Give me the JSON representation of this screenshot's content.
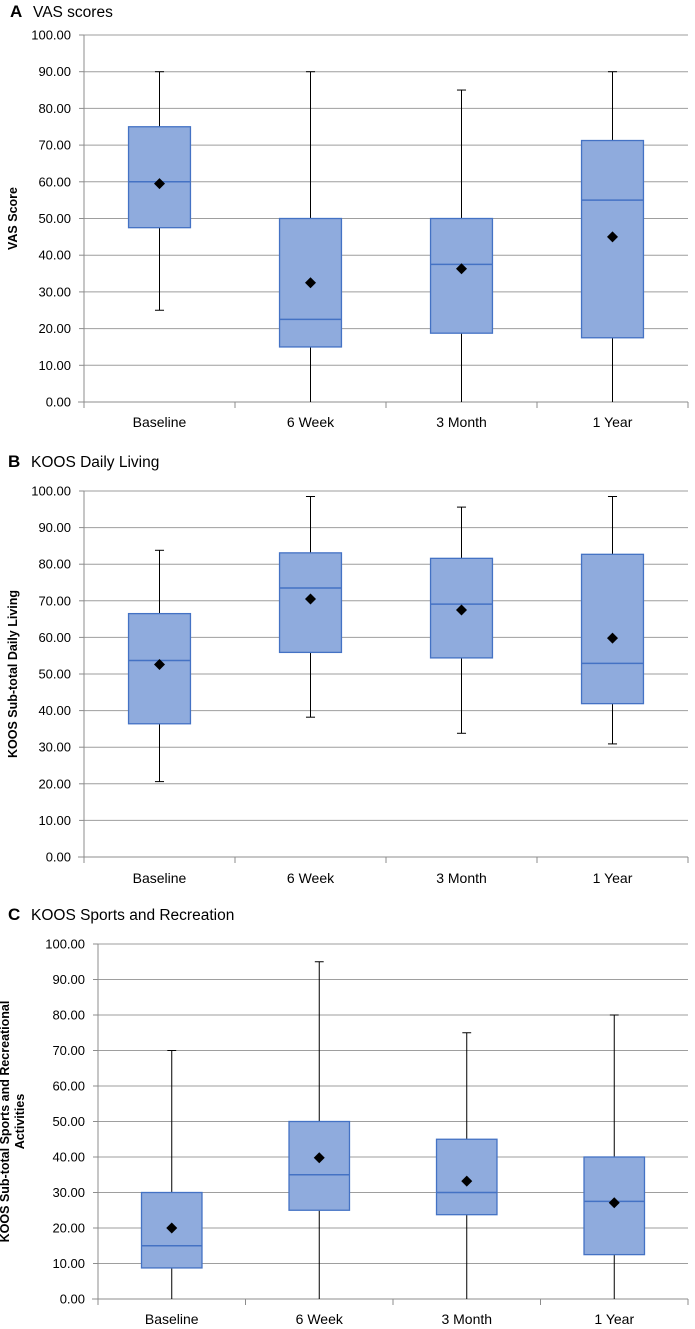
{
  "chart_data": [
    {
      "type": "box",
      "panel_letter": "A",
      "title": "VAS scores",
      "ylabel": "VAS Score",
      "ylabel_lines": [
        "VAS Score"
      ],
      "xlabel": "",
      "ylim": [
        0,
        100
      ],
      "ytick_step": 10,
      "ytick_labels": [
        "0.00",
        "10.00",
        "20.00",
        "30.00",
        "40.00",
        "50.00",
        "60.00",
        "70.00",
        "80.00",
        "90.00",
        "100.00"
      ],
      "grid": true,
      "categories": [
        "Baseline",
        "6 Week",
        "3 Month",
        "1 Year"
      ],
      "boxes": [
        {
          "min": 25,
          "q1": 47.5,
          "median": 60,
          "q3": 75,
          "max": 90,
          "mean": 59.5
        },
        {
          "min": 0,
          "q1": 15,
          "median": 22.5,
          "q3": 50,
          "max": 90,
          "mean": 32.5
        },
        {
          "min": 0,
          "q1": 18.75,
          "median": 37.5,
          "q3": 50,
          "max": 85,
          "mean": 36.3
        },
        {
          "min": 0,
          "q1": 17.5,
          "median": 55,
          "q3": 71.25,
          "max": 90,
          "mean": 45
        }
      ]
    },
    {
      "type": "box",
      "panel_letter": "B",
      "title": "KOOS Daily Living",
      "ylabel": "KOOS Sub-total Daily Living",
      "ylabel_lines": [
        "KOOS Sub-total Daily Living"
      ],
      "xlabel": "",
      "ylim": [
        0,
        100
      ],
      "ytick_step": 10,
      "ytick_labels": [
        "0.00",
        "10.00",
        "20.00",
        "30.00",
        "40.00",
        "50.00",
        "60.00",
        "70.00",
        "80.00",
        "90.00",
        "100.00"
      ],
      "grid": true,
      "categories": [
        "Baseline",
        "6 Week",
        "3 Month",
        "1 Year"
      ],
      "boxes": [
        {
          "min": 20.6,
          "q1": 36.4,
          "median": 53.7,
          "q3": 66.5,
          "max": 83.8,
          "mean": 52.6
        },
        {
          "min": 38.2,
          "q1": 55.9,
          "median": 73.5,
          "q3": 83.1,
          "max": 98.5,
          "mean": 70.5
        },
        {
          "min": 33.8,
          "q1": 54.4,
          "median": 69.1,
          "q3": 81.6,
          "max": 95.6,
          "mean": 67.5
        },
        {
          "min": 30.9,
          "q1": 41.9,
          "median": 52.9,
          "q3": 82.7,
          "max": 98.5,
          "mean": 59.8
        }
      ]
    },
    {
      "type": "box",
      "panel_letter": "C",
      "title": "KOOS Sports and Recreation",
      "ylabel": "KOOS Sub-total Sports and Recreational Activities",
      "ylabel_lines": [
        "KOOS Sub-total Sports and Recreational",
        "Activities"
      ],
      "xlabel": "",
      "ylim": [
        0,
        100
      ],
      "ytick_step": 10,
      "ytick_labels": [
        "0.00",
        "10.00",
        "20.00",
        "30.00",
        "40.00",
        "50.00",
        "60.00",
        "70.00",
        "80.00",
        "90.00",
        "100.00"
      ],
      "grid": true,
      "categories": [
        "Baseline",
        "6 Week",
        "3 Month",
        "1 Year"
      ],
      "boxes": [
        {
          "min": 0,
          "q1": 8.75,
          "median": 15,
          "q3": 30,
          "max": 70,
          "mean": 20
        },
        {
          "min": 0,
          "q1": 25,
          "median": 35,
          "q3": 50,
          "max": 95,
          "mean": 39.8
        },
        {
          "min": 0,
          "q1": 23.75,
          "median": 30,
          "q3": 45,
          "max": 75,
          "mean": 33.2
        },
        {
          "min": 0,
          "q1": 12.5,
          "median": 27.5,
          "q3": 40,
          "max": 80,
          "mean": 27.1
        }
      ]
    }
  ],
  "colors": {
    "box_fill": "#8FABDD",
    "box_stroke": "#4472C4",
    "whisker": "#000000",
    "mean_marker": "#000000",
    "grid": "#9E9E9E",
    "axis": "#8C8C8C"
  }
}
